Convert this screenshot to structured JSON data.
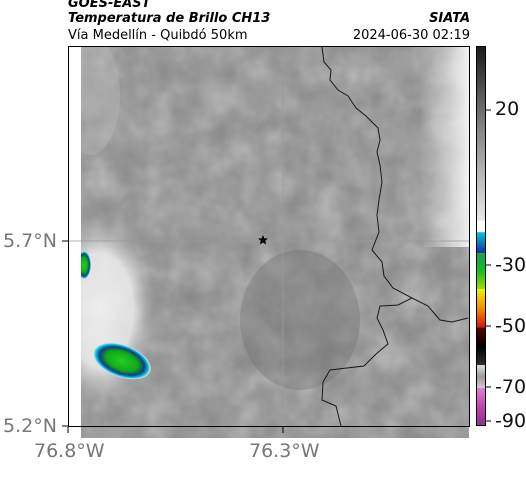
{
  "header": {
    "satellite": "GOES-EAST",
    "product": "Temperatura de Brillo CH13",
    "region": "Vía Medellín - Quibdó 50km",
    "agency": "SIATA",
    "datetime": "2024-06-30 02:19"
  },
  "map": {
    "lat_ticks": [
      "5.7°N",
      "5.2°N"
    ],
    "lon_ticks": [
      "76.8°W",
      "76.3°W"
    ],
    "marker": "star-icon"
  },
  "colorbar": {
    "tick_labels": [
      "20",
      "-30",
      "-50",
      "-70",
      "-90"
    ],
    "range": [
      -95,
      45
    ],
    "colors": {
      "warm": "#1a1a1a",
      "mid_gray": "#8a8a8a",
      "cyan": "#00c8e0",
      "blue": "#1030a0",
      "green": "#10c020",
      "yellow": "#f0f000",
      "red": "#e01010",
      "black": "#000000",
      "magenta": "#c040b0"
    }
  }
}
